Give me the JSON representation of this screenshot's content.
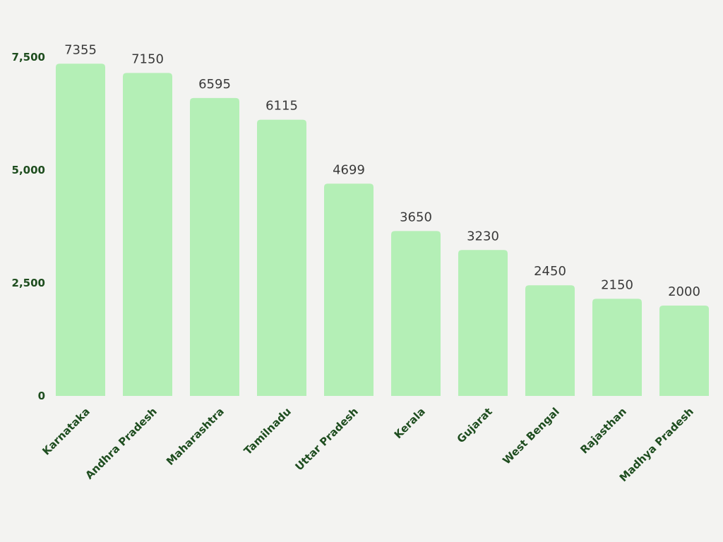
{
  "chart_data": {
    "type": "bar",
    "title": "",
    "xlabel": "",
    "ylabel": "",
    "categories": [
      "Karnataka",
      "Andhra Pradesh",
      "Maharashtra",
      "Tamilnadu",
      "Uttar Pradesh",
      "Kerala",
      "Gujarat",
      "West Bengal",
      "Rajasthan",
      "Madhya Pradesh"
    ],
    "values": [
      7355,
      7150,
      6595,
      6115,
      4699,
      3650,
      3230,
      2450,
      2150,
      2000
    ],
    "value_labels": [
      "7355",
      "7150",
      "6595",
      "6115",
      "4699",
      "3650",
      "3230",
      "2450",
      "2150",
      "2000"
    ],
    "ylim": [
      0,
      7500
    ],
    "yticks": [
      0,
      2500,
      5000,
      7500
    ],
    "ytick_labels": [
      "0",
      "2,500",
      "5,000",
      "7,500"
    ],
    "grid": false,
    "legend": "none",
    "colors": {
      "bar": "#b4efb6",
      "tick_text": "#1e4d1f",
      "value_text": "#3a3a3a",
      "background": "#f3f3f1"
    }
  }
}
